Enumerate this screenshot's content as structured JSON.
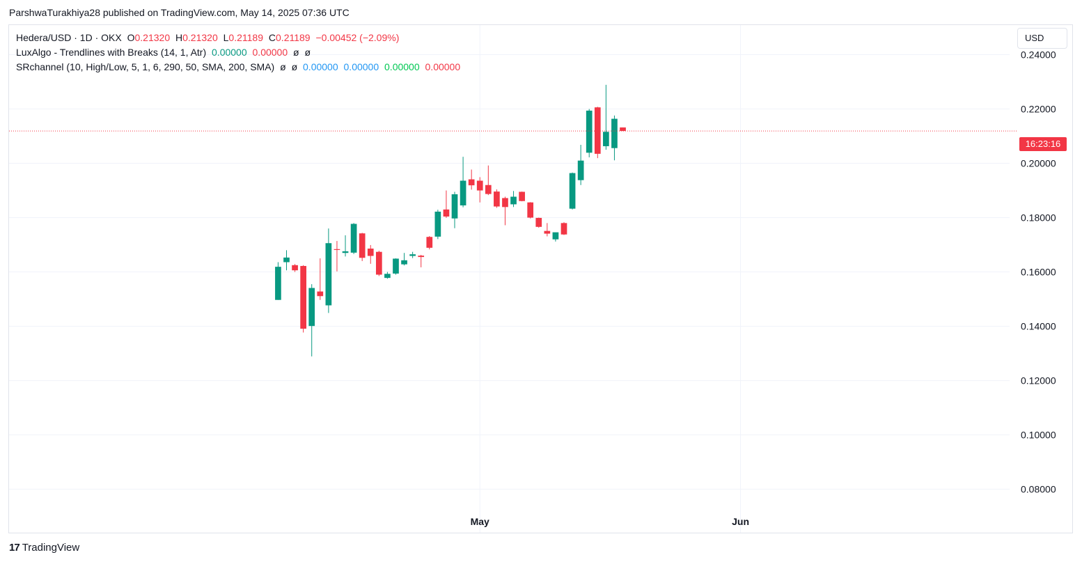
{
  "header": {
    "published_line": "ParshwaTurakhiya28 published on TradingView.com, May 14, 2025 07:36 UTC"
  },
  "legend": {
    "symbol": "Hedera/USD · 1D · OKX",
    "o_label": "O",
    "o_value": "0.21320",
    "h_label": "H",
    "h_value": "0.21320",
    "l_label": "L",
    "l_value": "0.21189",
    "c_label": "C",
    "c_value": "0.21189",
    "change": "−0.00452 (−2.09%)",
    "indicator1_name": "LuxAlgo - Trendlines with Breaks (14, 1, Atr)",
    "indicator1_v1": "0.00000",
    "indicator1_v2": "0.00000",
    "indicator1_n1": "ø",
    "indicator1_n2": "ø",
    "indicator2_name": "SRchannel (10, High/Low, 5, 1, 6, 290, 50, SMA, 200, SMA)",
    "indicator2_n1": "ø",
    "indicator2_n2": "ø",
    "indicator2_v1": "0.00000",
    "indicator2_v2": "0.00000",
    "indicator2_v3": "0.00000",
    "indicator2_v4": "0.00000"
  },
  "currency_button": "USD",
  "countdown": "16:23:16",
  "footer": {
    "brand": "TradingView",
    "logo_mark": "17"
  },
  "colors": {
    "up": "#089981",
    "down": "#f23645",
    "grid": "#f0f3fa",
    "indicator_blue": "#2196f3",
    "indicator_green": "#00c853"
  },
  "chart_data": {
    "type": "candlestick",
    "title": "Hedera/USD · 1D · OKX",
    "grid": true,
    "ylim": [
      0.064,
      0.2509
    ],
    "y_ticks": [
      "0.24000",
      "0.22000",
      "0.20000",
      "0.18000",
      "0.16000",
      "0.14000",
      "0.12000",
      "0.10000",
      "0.08000"
    ],
    "x_ticks": [
      {
        "label": "May",
        "date": "2025-05-01"
      },
      {
        "label": "Jun",
        "date": "2025-06-01"
      }
    ],
    "x_range": [
      "2025-03-06",
      "2025-07-03"
    ],
    "last_price": 0.21189,
    "candles": [
      {
        "date": "2025-04-07",
        "o": 0.1497,
        "h": 0.1636,
        "l": 0.1497,
        "c": 0.1619
      },
      {
        "date": "2025-04-08",
        "o": 0.1636,
        "h": 0.168,
        "l": 0.1606,
        "c": 0.1653
      },
      {
        "date": "2025-04-09",
        "o": 0.1625,
        "h": 0.1629,
        "l": 0.16,
        "c": 0.1606
      },
      {
        "date": "2025-04-10",
        "o": 0.1622,
        "h": 0.1625,
        "l": 0.1377,
        "c": 0.1391
      },
      {
        "date": "2025-04-11",
        "o": 0.1401,
        "h": 0.1555,
        "l": 0.1289,
        "c": 0.1541
      },
      {
        "date": "2025-04-12",
        "o": 0.1528,
        "h": 0.165,
        "l": 0.1497,
        "c": 0.1511
      },
      {
        "date": "2025-04-13",
        "o": 0.1477,
        "h": 0.176,
        "l": 0.1449,
        "c": 0.1706
      },
      {
        "date": "2025-04-14",
        "o": 0.1684,
        "h": 0.1714,
        "l": 0.1602,
        "c": 0.1681
      },
      {
        "date": "2025-04-15",
        "o": 0.167,
        "h": 0.1735,
        "l": 0.1657,
        "c": 0.1676
      },
      {
        "date": "2025-04-16",
        "o": 0.1671,
        "h": 0.178,
        "l": 0.1666,
        "c": 0.1777
      },
      {
        "date": "2025-04-17",
        "o": 0.1742,
        "h": 0.1744,
        "l": 0.164,
        "c": 0.1652
      },
      {
        "date": "2025-04-18",
        "o": 0.1686,
        "h": 0.1699,
        "l": 0.163,
        "c": 0.1659
      },
      {
        "date": "2025-04-19",
        "o": 0.1674,
        "h": 0.1678,
        "l": 0.1585,
        "c": 0.159
      },
      {
        "date": "2025-04-20",
        "o": 0.1578,
        "h": 0.16,
        "l": 0.1575,
        "c": 0.1593
      },
      {
        "date": "2025-04-21",
        "o": 0.1594,
        "h": 0.165,
        "l": 0.159,
        "c": 0.1649
      },
      {
        "date": "2025-04-22",
        "o": 0.1628,
        "h": 0.167,
        "l": 0.1624,
        "c": 0.1643
      },
      {
        "date": "2025-04-23",
        "o": 0.1659,
        "h": 0.1674,
        "l": 0.1651,
        "c": 0.1665
      },
      {
        "date": "2025-04-24",
        "o": 0.166,
        "h": 0.1663,
        "l": 0.1617,
        "c": 0.1655
      },
      {
        "date": "2025-04-25",
        "o": 0.1729,
        "h": 0.1732,
        "l": 0.1683,
        "c": 0.1689
      },
      {
        "date": "2025-04-26",
        "o": 0.173,
        "h": 0.1829,
        "l": 0.1721,
        "c": 0.1822
      },
      {
        "date": "2025-04-27",
        "o": 0.183,
        "h": 0.19,
        "l": 0.1799,
        "c": 0.1804
      },
      {
        "date": "2025-04-28",
        "o": 0.1797,
        "h": 0.1895,
        "l": 0.1761,
        "c": 0.1886
      },
      {
        "date": "2025-04-29",
        "o": 0.1845,
        "h": 0.2024,
        "l": 0.1838,
        "c": 0.1936
      },
      {
        "date": "2025-04-30",
        "o": 0.1941,
        "h": 0.1977,
        "l": 0.1903,
        "c": 0.1919
      },
      {
        "date": "2025-05-01",
        "o": 0.1936,
        "h": 0.1949,
        "l": 0.1856,
        "c": 0.19
      },
      {
        "date": "2025-05-02",
        "o": 0.192,
        "h": 0.1992,
        "l": 0.1883,
        "c": 0.1887
      },
      {
        "date": "2025-05-03",
        "o": 0.1896,
        "h": 0.1904,
        "l": 0.1836,
        "c": 0.1841
      },
      {
        "date": "2025-05-04",
        "o": 0.1872,
        "h": 0.1877,
        "l": 0.1772,
        "c": 0.1839
      },
      {
        "date": "2025-05-05",
        "o": 0.1849,
        "h": 0.1898,
        "l": 0.1839,
        "c": 0.1877
      },
      {
        "date": "2025-05-06",
        "o": 0.1895,
        "h": 0.1896,
        "l": 0.186,
        "c": 0.1861
      },
      {
        "date": "2025-05-07",
        "o": 0.1856,
        "h": 0.1857,
        "l": 0.1797,
        "c": 0.18
      },
      {
        "date": "2025-05-08",
        "o": 0.1799,
        "h": 0.18,
        "l": 0.1763,
        "c": 0.1766
      },
      {
        "date": "2025-05-09",
        "o": 0.1751,
        "h": 0.178,
        "l": 0.1731,
        "c": 0.1741
      },
      {
        "date": "2025-05-10",
        "o": 0.172,
        "h": 0.1745,
        "l": 0.1712,
        "c": 0.1746
      },
      {
        "date": "2025-05-11",
        "o": 0.178,
        "h": 0.1783,
        "l": 0.1736,
        "c": 0.1738
      },
      {
        "date": "2025-05-12",
        "o": 0.1833,
        "h": 0.1966,
        "l": 0.183,
        "c": 0.1964
      },
      {
        "date": "2025-05-13",
        "o": 0.1938,
        "h": 0.2068,
        "l": 0.192,
        "c": 0.201
      },
      {
        "date": "2025-05-14",
        "o": 0.2039,
        "h": 0.22,
        "l": 0.2022,
        "c": 0.2194
      },
      {
        "date": "2025-05-15",
        "o": 0.2206,
        "h": 0.2208,
        "l": 0.2019,
        "c": 0.2035
      },
      {
        "date": "2025-05-16",
        "o": 0.2063,
        "h": 0.2289,
        "l": 0.205,
        "c": 0.2116
      },
      {
        "date": "2025-05-17",
        "o": 0.2056,
        "h": 0.2176,
        "l": 0.2011,
        "c": 0.2164
      },
      {
        "date": "2025-05-18",
        "o": 0.2132,
        "h": 0.2132,
        "l": 0.2119,
        "c": 0.2119
      }
    ]
  }
}
